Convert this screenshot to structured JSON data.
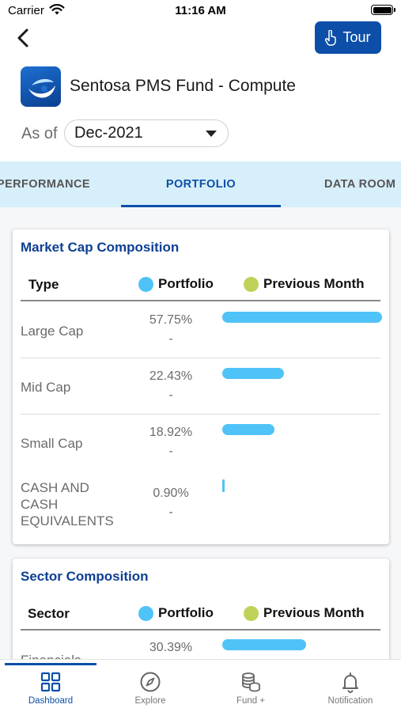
{
  "status_bar": {
    "carrier": "Carrier",
    "time": "11:16 AM"
  },
  "header": {
    "tour_label": "Tour",
    "fund_title": "Sentosa PMS Fund - Compute",
    "as_of_label": "As of",
    "as_of_value": "Dec-2021"
  },
  "tabs": [
    {
      "label": "PERFORMANCE",
      "active": false
    },
    {
      "label": "PORTFOLIO",
      "active": true
    },
    {
      "label": "DATA ROOM",
      "active": false
    }
  ],
  "market_cap": {
    "title": "Market Cap Composition",
    "col_type": "Type",
    "col_portfolio": "Portfolio",
    "col_prev": "Previous Month",
    "rows": [
      {
        "label": "Large Cap",
        "portfolio": "57.75%",
        "previous": "-",
        "value": 57.75
      },
      {
        "label": "Mid Cap",
        "portfolio": "22.43%",
        "previous": "-",
        "value": 22.43
      },
      {
        "label": "Small Cap",
        "portfolio": "18.92%",
        "previous": "-",
        "value": 18.92
      },
      {
        "label": "CASH AND CASH EQUIVALENTS",
        "portfolio": "0.90%",
        "previous": "-",
        "value": 0.9
      }
    ]
  },
  "sector": {
    "title": "Sector Composition",
    "col_type": "Sector",
    "col_portfolio": "Portfolio",
    "col_prev": "Previous Month",
    "rows": [
      {
        "label": "Financials",
        "portfolio": "30.39%",
        "previous": "-",
        "value": 30.39
      }
    ]
  },
  "bottom_nav": [
    {
      "label": "Dashboard",
      "icon": "grid-icon",
      "active": true
    },
    {
      "label": "Explore",
      "icon": "compass-icon",
      "active": false
    },
    {
      "label": "Fund +",
      "icon": "coins-icon",
      "active": false
    },
    {
      "label": "Notification",
      "icon": "bell-icon",
      "active": false
    }
  ],
  "colors": {
    "primary": "#0d4fa8",
    "title_blue": "#0d3f94",
    "tab_bg": "#d7effa",
    "portfolio_dot": "#4fc3f7",
    "previous_dot": "#c0d15a"
  }
}
